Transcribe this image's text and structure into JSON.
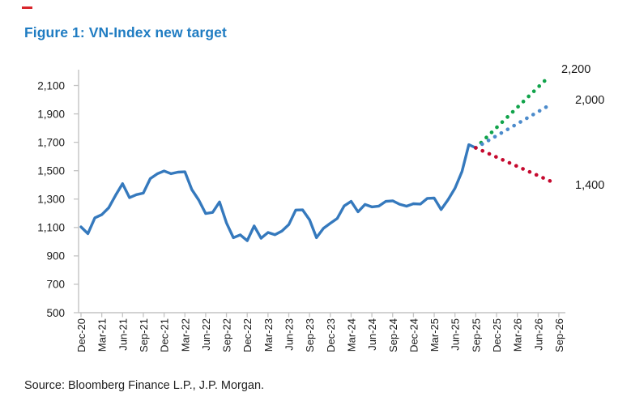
{
  "figure": {
    "title": "Figure 1: VN-Index new target",
    "source": "Source: Bloomberg Finance L.P., J.P. Morgan.",
    "title_color": "#1f7cc2",
    "accent_mark_color": "#d8262c"
  },
  "chart_data": {
    "type": "line",
    "title": "VN-Index new target",
    "xlabel": "",
    "ylabel": "",
    "grid": false,
    "legend": "none",
    "ylim": [
      500,
      2200
    ],
    "y_ticks": [
      500,
      700,
      900,
      1100,
      1300,
      1500,
      1700,
      1900,
      2100
    ],
    "x_tick_labels": [
      "Dec-20",
      "Mar-21",
      "Jun-21",
      "Sep-21",
      "Dec-21",
      "Mar-22",
      "Jun-22",
      "Sep-22",
      "Dec-22",
      "Mar-23",
      "Jun-23",
      "Sep-23",
      "Dec-23",
      "Mar-24",
      "Jun-24",
      "Sep-24",
      "Dec-24",
      "Mar-25",
      "Jun-25",
      "Sep-25",
      "Dec-25",
      "Mar-26",
      "Jun-26",
      "Sep-26"
    ],
    "x_frequency_of_data": "monthly",
    "series": [
      {
        "name": "VN-Index",
        "style": "solid",
        "color": "#3579bd",
        "months": [
          "Dec-20",
          "Jan-21",
          "Feb-21",
          "Mar-21",
          "Apr-21",
          "May-21",
          "Jun-21",
          "Jul-21",
          "Aug-21",
          "Sep-21",
          "Oct-21",
          "Nov-21",
          "Dec-21",
          "Jan-22",
          "Feb-22",
          "Mar-22",
          "Apr-22",
          "May-22",
          "Jun-22",
          "Jul-22",
          "Aug-22",
          "Sep-22",
          "Oct-22",
          "Nov-22",
          "Dec-22",
          "Jan-23",
          "Feb-23",
          "Mar-23",
          "Apr-23",
          "May-23",
          "Jun-23",
          "Jul-23",
          "Aug-23",
          "Sep-23",
          "Oct-23",
          "Nov-23",
          "Dec-23",
          "Jan-24",
          "Feb-24",
          "Mar-24",
          "Apr-24",
          "May-24",
          "Jun-24",
          "Jul-24",
          "Aug-24",
          "Sep-24",
          "Oct-24",
          "Nov-24",
          "Dec-24",
          "Jan-25",
          "Feb-25",
          "Mar-25",
          "Apr-25",
          "May-25",
          "Jun-25",
          "Jul-25",
          "Aug-25",
          "Sep-25"
        ],
        "values": [
          1104,
          1057,
          1168,
          1191,
          1239,
          1328,
          1409,
          1310,
          1331,
          1342,
          1444,
          1478,
          1498,
          1479,
          1490,
          1492,
          1367,
          1293,
          1198,
          1206,
          1280,
          1132,
          1028,
          1048,
          1007,
          1111,
          1024,
          1065,
          1049,
          1075,
          1120,
          1223,
          1224,
          1154,
          1028,
          1094,
          1130,
          1164,
          1252,
          1284,
          1210,
          1262,
          1245,
          1251,
          1284,
          1288,
          1264,
          1250,
          1267,
          1265,
          1305,
          1307,
          1226,
          1296,
          1376,
          1493,
          1683,
          1661
        ]
      }
    ],
    "projections": [
      {
        "name": "bull-case-target",
        "style": "dotted",
        "color": "#10a34a",
        "from": "Sep-25",
        "from_value": 1661,
        "to": "Sep-26",
        "to_value": 2200,
        "label": "2,200"
      },
      {
        "name": "base-case-target",
        "style": "dotted",
        "color": "#4c8bcb",
        "from": "Sep-25",
        "from_value": 1661,
        "to": "Sep-26",
        "to_value": 2000,
        "label": "2,000"
      },
      {
        "name": "bear-case-target",
        "style": "dotted",
        "color": "#c5092e",
        "from": "Sep-25",
        "from_value": 1661,
        "to": "Sep-26",
        "to_value": 1400,
        "label": "1,400"
      }
    ]
  }
}
